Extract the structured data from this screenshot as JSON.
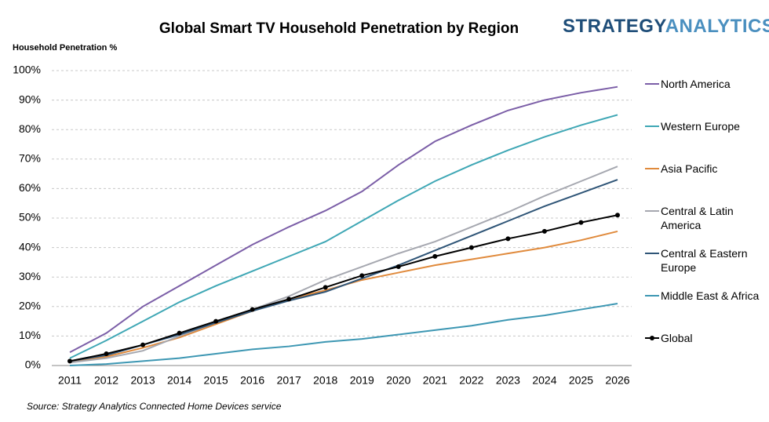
{
  "chart_data": {
    "type": "line",
    "title": "Global Smart TV Household Penetration by Region",
    "logo": {
      "bold": "STRATEGY",
      "light": "ANALYTICS"
    },
    "y_axis_label": "Household Penetration %",
    "source": "Source: Strategy Analytics Connected Home Devices service",
    "categories": [
      "2011",
      "2012",
      "2013",
      "2014",
      "2015",
      "2016",
      "2017",
      "2018",
      "2019",
      "2020",
      "2021",
      "2022",
      "2023",
      "2024",
      "2025",
      "2026"
    ],
    "ylim": [
      0,
      100
    ],
    "yticks": [
      {
        "value": 0,
        "label": "0%"
      },
      {
        "value": 10,
        "label": "10%"
      },
      {
        "value": 20,
        "label": "20%"
      },
      {
        "value": 30,
        "label": "30%"
      },
      {
        "value": 40,
        "label": "40%"
      },
      {
        "value": 50,
        "label": "50%"
      },
      {
        "value": 60,
        "label": "60%"
      },
      {
        "value": 70,
        "label": "70%"
      },
      {
        "value": 80,
        "label": "80%"
      },
      {
        "value": 90,
        "label": "90%"
      },
      {
        "value": 100,
        "label": "100%"
      }
    ],
    "grid": true,
    "legend": "right",
    "series": [
      {
        "name": "North America",
        "color": "#7b5ea7",
        "values": [
          4.5,
          11,
          20,
          27,
          34,
          41,
          47,
          52.5,
          59,
          68,
          76,
          81.5,
          86.5,
          90,
          92.5,
          94.5
        ]
      },
      {
        "name": "Western Europe",
        "color": "#3fa7b5",
        "values": [
          2.5,
          8.5,
          15,
          21.5,
          27,
          32,
          37,
          42,
          49,
          56,
          62.5,
          68,
          73,
          77.5,
          81.5,
          85
        ]
      },
      {
        "name": "Asia Pacific",
        "color": "#e08a3c",
        "values": [
          1,
          3,
          6,
          9.5,
          14,
          18.5,
          22.5,
          25.5,
          29,
          31.5,
          34,
          36,
          38,
          40,
          42.5,
          45.5
        ]
      },
      {
        "name": "Central & Latin America",
        "color": "#a6a8b0",
        "values": [
          1,
          2.5,
          5,
          10,
          14.5,
          19,
          23.5,
          29,
          33.5,
          38,
          42,
          47,
          52,
          57.5,
          62.5,
          67.5
        ]
      },
      {
        "name": "Central & Eastern Europe",
        "color": "#2f5577",
        "values": [
          1.5,
          3.5,
          7,
          10.5,
          14.5,
          18.5,
          22,
          25,
          29.5,
          34,
          39,
          44,
          49,
          54,
          58.5,
          63
        ]
      },
      {
        "name": "Middle East & Africa",
        "color": "#3d97b3",
        "values": [
          0,
          0.5,
          1.5,
          2.5,
          4,
          5.5,
          6.5,
          8,
          9,
          10.5,
          12,
          13.5,
          15.5,
          17,
          19,
          21
        ]
      },
      {
        "name": "Global",
        "color": "#000000",
        "markers": true,
        "values": [
          1.5,
          4,
          7,
          11,
          15,
          19,
          22.5,
          26.5,
          30.5,
          33.5,
          37,
          40,
          43,
          45.5,
          48.5,
          51
        ]
      }
    ]
  }
}
